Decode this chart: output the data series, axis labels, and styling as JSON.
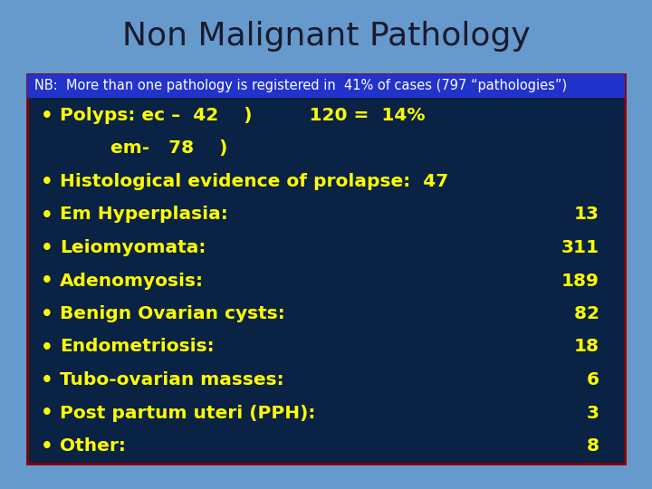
{
  "title": "Non Malignant Pathology",
  "title_color": "#1a1a2e",
  "title_fontsize": 26,
  "title_fontweight": "normal",
  "background_color": "#6699cc",
  "box_bg_color": "#0a2244",
  "box_border_color": "#8b0000",
  "nb_bg_color": "#2233cc",
  "nb_text": "NB:  More than one pathology is registered in  41% of cases (797 “pathologies”)",
  "nb_text_color": "#ffffff",
  "nb_fontsize": 10.5,
  "bullet_color": "#ffff00",
  "bullet_fontsize": 14.5,
  "bullet_lines": [
    [
      "Polyps: ec –  42    )         120 =  14%",
      ""
    ],
    [
      "        em-   78    )",
      ""
    ],
    [
      "Histological evidence of prolapse:  47",
      ""
    ],
    [
      "Em Hyperplasia:",
      "13"
    ],
    [
      "Leiomyomata:",
      "311"
    ],
    [
      "Adenomyosis:",
      "189"
    ],
    [
      "Benign Ovarian cysts:",
      " 82"
    ],
    [
      "Endometriosis:",
      "18"
    ],
    [
      "Tubo-ovarian masses:",
      " 6"
    ],
    [
      "Post partum uteri (PPH):",
      " 3"
    ],
    [
      "Other:",
      " 8"
    ]
  ],
  "has_bullet": [
    true,
    false,
    true,
    true,
    true,
    true,
    true,
    true,
    true,
    true,
    true
  ]
}
